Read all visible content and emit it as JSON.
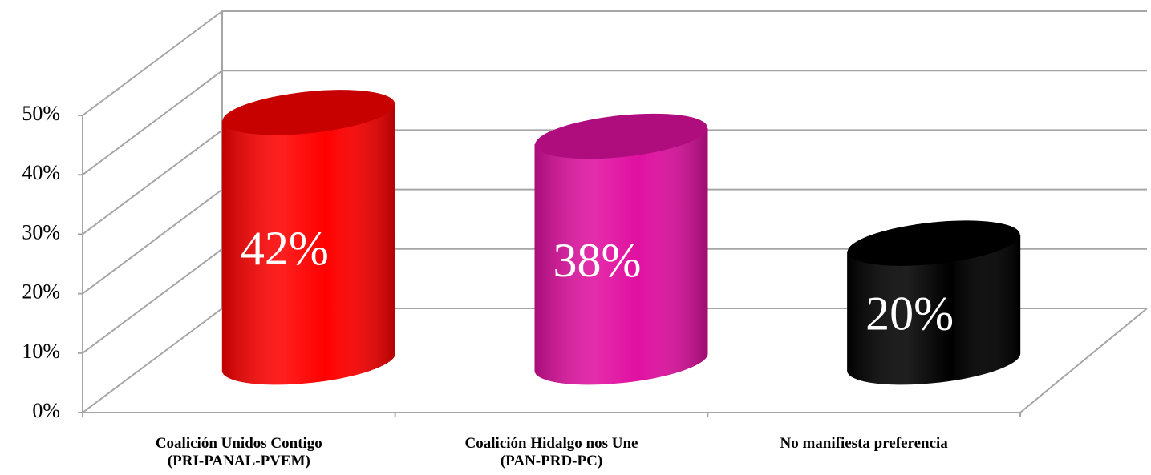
{
  "chart_data": {
    "type": "bar",
    "categories": [
      "Coalición Unidos Contigo\n(PRI-PANAL-PVEM)",
      "Coalición Hidalgo nos Une\n(PAN-PRD-PC)",
      "No manifiesta preferencia"
    ],
    "values": [
      42,
      38,
      20
    ],
    "value_labels": [
      "42%",
      "38%",
      "20%"
    ],
    "colors": [
      "#ff0000",
      "#e010a0",
      "#000000"
    ],
    "ylim": [
      0,
      50
    ],
    "yticks": [
      {
        "value": 0,
        "label": "0%"
      },
      {
        "value": 10,
        "label": "10%"
      },
      {
        "value": 20,
        "label": "20%"
      },
      {
        "value": 30,
        "label": "30%"
      },
      {
        "value": 40,
        "label": "40%"
      },
      {
        "value": 50,
        "label": "50%"
      }
    ],
    "grid": true
  }
}
